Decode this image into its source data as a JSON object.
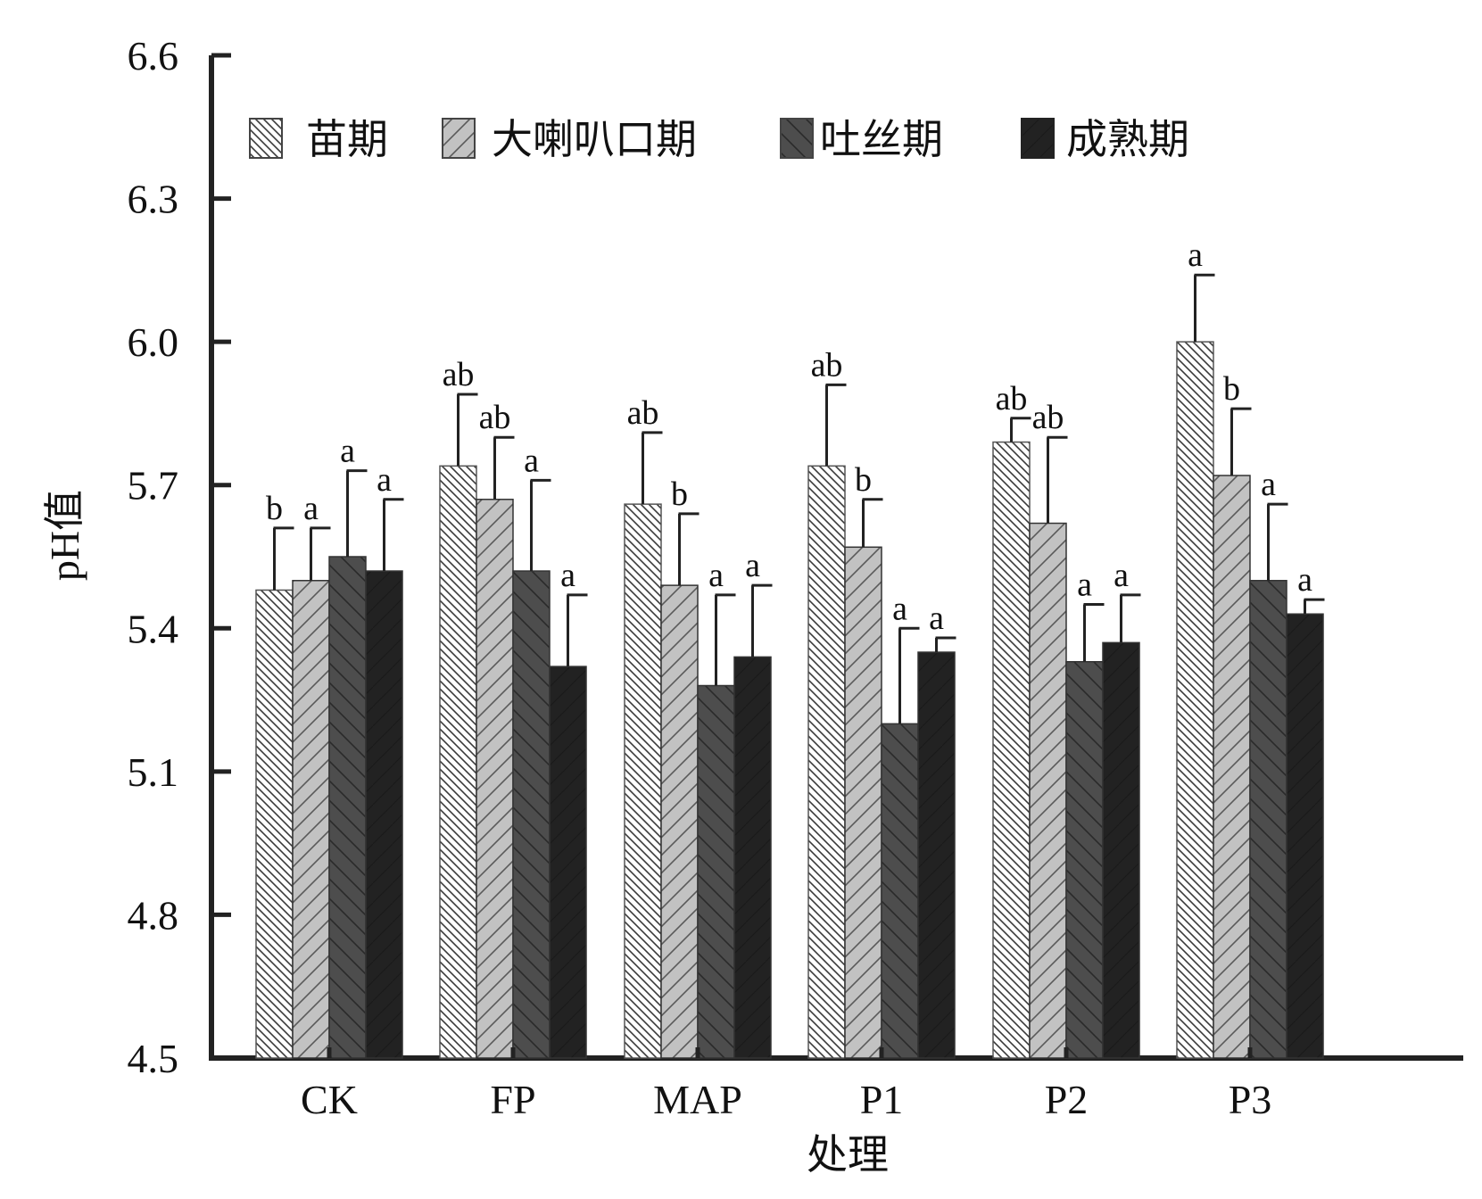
{
  "chart_data": {
    "type": "bar",
    "xlabel": "处理",
    "ylabel": "pH值",
    "ylim": [
      4.5,
      6.6
    ],
    "yticks": [
      "4.5",
      "4.8",
      "5.1",
      "5.4",
      "5.7",
      "6.0",
      "6.3",
      "6.6"
    ],
    "categories": [
      "CK",
      "FP",
      "MAP",
      "P1",
      "P2",
      "P3"
    ],
    "legend_placement": "top-left, horizontal",
    "grid": false,
    "series": [
      {
        "name": "苗期",
        "values": [
          5.48,
          5.74,
          5.66,
          5.74,
          5.79,
          6.0
        ],
        "errors": [
          0.13,
          0.15,
          0.15,
          0.17,
          0.05,
          0.14
        ],
        "sig": [
          "b",
          "ab",
          "ab",
          "ab",
          "ab",
          "a"
        ]
      },
      {
        "name": "大喇叭口期",
        "values": [
          5.5,
          5.67,
          5.49,
          5.57,
          5.62,
          5.72
        ],
        "errors": [
          0.11,
          0.13,
          0.15,
          0.1,
          0.18,
          0.14
        ],
        "sig": [
          "a",
          "ab",
          "b",
          "b",
          "ab",
          "b"
        ]
      },
      {
        "name": "吐丝期",
        "values": [
          5.55,
          5.52,
          5.28,
          5.2,
          5.33,
          5.5
        ],
        "errors": [
          0.18,
          0.19,
          0.19,
          0.2,
          0.12,
          0.16
        ],
        "sig": [
          "a",
          "a",
          "a",
          "a",
          "a",
          "a"
        ]
      },
      {
        "name": "成熟期",
        "values": [
          5.52,
          5.32,
          5.34,
          5.35,
          5.37,
          5.43
        ],
        "errors": [
          0.15,
          0.15,
          0.15,
          0.03,
          0.1,
          0.03
        ],
        "sig": [
          "a",
          "a",
          "a",
          "a",
          "a",
          "a"
        ]
      }
    ],
    "colors": {
      "series_fill": [
        "#ffffff",
        "#c2c2c2",
        "#4d4d4d",
        "#222222"
      ],
      "hatch": [
        "#3a3a3a",
        "#5a5a5a",
        "#2a2a2a",
        "#1a1a1a"
      ],
      "axis": "#222222"
    }
  }
}
